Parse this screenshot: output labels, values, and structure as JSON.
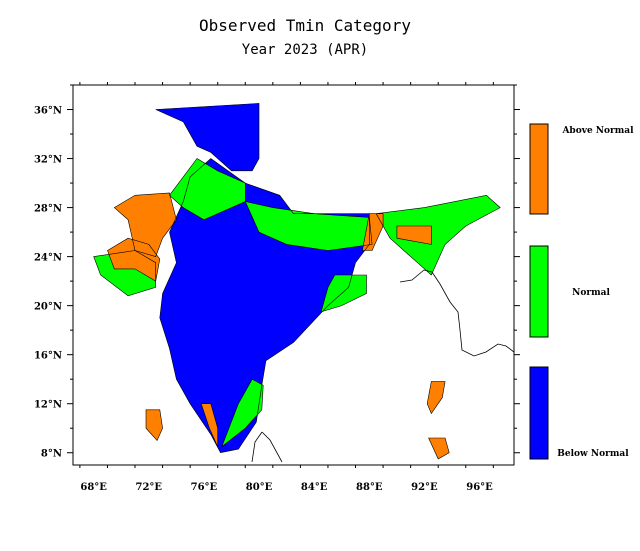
{
  "title": "Observed Tmin Category",
  "subtitle": "Year 2023 (APR)",
  "chart_data": {
    "type": "heatmap",
    "title": "Observed Tmin Category",
    "subtitle": "Year 2023 (APR)",
    "x_ticks": [
      "68°E",
      "72°E",
      "76°E",
      "80°E",
      "84°E",
      "88°E",
      "92°E",
      "96°E"
    ],
    "y_ticks": [
      "36°N",
      "32°N",
      "28°N",
      "24°N",
      "20°N",
      "16°N",
      "12°N",
      "8°N"
    ],
    "xlim": [
      66.5,
      98.5
    ],
    "ylim": [
      7,
      38
    ],
    "categories": [
      {
        "name": "Above Normal",
        "color": "#ff7f00"
      },
      {
        "name": "Normal",
        "color": "#00ff00"
      },
      {
        "name": "Below Normal",
        "color": "#0000ff"
      }
    ],
    "regions": [
      {
        "category": "Below Normal",
        "polygon": [
          [
            72.5,
            36.0
          ],
          [
            80.0,
            36.5
          ],
          [
            80.0,
            32.0
          ],
          [
            79.5,
            31.0
          ],
          [
            78.0,
            31.0
          ],
          [
            76.5,
            32.5
          ],
          [
            75.5,
            33.0
          ],
          [
            74.5,
            35.0
          ]
        ]
      },
      {
        "category": "Below Normal",
        "polygon": [
          [
            76.5,
            32.0
          ],
          [
            79.0,
            30.0
          ],
          [
            81.5,
            29.0
          ],
          [
            82.5,
            27.5
          ],
          [
            88.0,
            27.5
          ],
          [
            88.0,
            25.0
          ],
          [
            87.0,
            23.5
          ],
          [
            86.5,
            21.5
          ],
          [
            85.0,
            20.0
          ],
          [
            82.5,
            17.0
          ],
          [
            80.5,
            15.5
          ],
          [
            80.2,
            13.5
          ],
          [
            79.8,
            10.5
          ],
          [
            78.5,
            8.3
          ],
          [
            77.2,
            8.0
          ],
          [
            76.5,
            9.5
          ],
          [
            75.0,
            12.0
          ],
          [
            74.0,
            14.0
          ],
          [
            73.5,
            16.5
          ],
          [
            72.8,
            19.0
          ],
          [
            73.0,
            21.0
          ],
          [
            74.0,
            23.5
          ],
          [
            73.5,
            26.0
          ],
          [
            74.5,
            28.5
          ],
          [
            75.0,
            30.5
          ]
        ]
      },
      {
        "category": "Normal",
        "polygon": [
          [
            73.5,
            29.0
          ],
          [
            75.5,
            32.0
          ],
          [
            77.0,
            31.0
          ],
          [
            79.0,
            30.0
          ],
          [
            79.0,
            28.5
          ],
          [
            76.0,
            27.0
          ],
          [
            74.5,
            28.0
          ]
        ]
      },
      {
        "category": "Normal",
        "polygon": [
          [
            68.0,
            24.0
          ],
          [
            71.0,
            24.5
          ],
          [
            72.5,
            23.5
          ],
          [
            72.5,
            21.5
          ],
          [
            70.5,
            20.8
          ],
          [
            68.5,
            22.5
          ]
        ]
      },
      {
        "category": "Normal",
        "polygon": [
          [
            79.0,
            28.5
          ],
          [
            81.0,
            28.0
          ],
          [
            84.0,
            27.5
          ],
          [
            88.0,
            27.2
          ],
          [
            88.2,
            25.0
          ],
          [
            85.0,
            24.5
          ],
          [
            82.0,
            25.0
          ],
          [
            80.0,
            26.0
          ]
        ]
      },
      {
        "category": "Normal",
        "polygon": [
          [
            85.5,
            22.5
          ],
          [
            87.8,
            22.5
          ],
          [
            87.8,
            21.0
          ],
          [
            86.0,
            20.0
          ],
          [
            84.5,
            19.5
          ],
          [
            85.0,
            21.5
          ]
        ]
      },
      {
        "category": "Normal",
        "polygon": [
          [
            88.5,
            27.5
          ],
          [
            92.0,
            28.0
          ],
          [
            96.5,
            29.0
          ],
          [
            97.5,
            28.0
          ],
          [
            95.0,
            26.5
          ],
          [
            93.5,
            25.0
          ],
          [
            92.5,
            22.5
          ],
          [
            91.5,
            23.5
          ],
          [
            89.5,
            25.5
          ]
        ]
      },
      {
        "category": "Normal",
        "polygon": [
          [
            79.0,
            10.0
          ],
          [
            80.2,
            11.5
          ],
          [
            80.3,
            13.5
          ],
          [
            79.5,
            14.0
          ],
          [
            78.5,
            12.0
          ],
          [
            77.3,
            8.5
          ]
        ]
      },
      {
        "category": "Above Normal",
        "polygon": [
          [
            69.5,
            28.0
          ],
          [
            71.0,
            29.0
          ],
          [
            73.5,
            29.2
          ],
          [
            74.0,
            27.0
          ],
          [
            73.0,
            25.5
          ],
          [
            72.5,
            24.0
          ],
          [
            71.0,
            24.5
          ],
          [
            70.5,
            27.0
          ]
        ]
      },
      {
        "category": "Above Normal",
        "polygon": [
          [
            69.0,
            24.5
          ],
          [
            70.5,
            25.5
          ],
          [
            72.0,
            25.0
          ],
          [
            72.8,
            23.8
          ],
          [
            72.5,
            22.0
          ],
          [
            71.0,
            23.0
          ],
          [
            69.5,
            23.0
          ]
        ]
      },
      {
        "category": "Above Normal",
        "polygon": [
          [
            88.0,
            27.5
          ],
          [
            89.0,
            27.5
          ],
          [
            89.0,
            26.5
          ],
          [
            88.2,
            24.5
          ],
          [
            87.5,
            24.5
          ]
        ]
      },
      {
        "category": "Above Normal",
        "polygon": [
          [
            90.0,
            26.5
          ],
          [
            92.5,
            26.5
          ],
          [
            92.5,
            25.0
          ],
          [
            90.0,
            25.5
          ]
        ]
      },
      {
        "category": "Above Normal",
        "polygon": [
          [
            92.5,
            13.8
          ],
          [
            93.5,
            13.8
          ],
          [
            93.3,
            12.5
          ],
          [
            92.5,
            11.2
          ],
          [
            92.2,
            12.0
          ]
        ]
      },
      {
        "category": "Above Normal",
        "polygon": [
          [
            92.3,
            9.2
          ],
          [
            93.5,
            9.2
          ],
          [
            93.8,
            8.0
          ],
          [
            93.0,
            7.5
          ]
        ]
      },
      {
        "category": "Above Normal",
        "polygon": [
          [
            71.8,
            11.5
          ],
          [
            72.8,
            11.5
          ],
          [
            73.0,
            10.0
          ],
          [
            72.6,
            9.0
          ],
          [
            71.8,
            10.0
          ]
        ]
      },
      {
        "category": "Above Normal",
        "polygon": [
          [
            75.8,
            12.0
          ],
          [
            76.5,
            12.0
          ],
          [
            77.0,
            10.0
          ],
          [
            77.0,
            8.5
          ],
          [
            76.4,
            10.0
          ]
        ]
      }
    ]
  }
}
